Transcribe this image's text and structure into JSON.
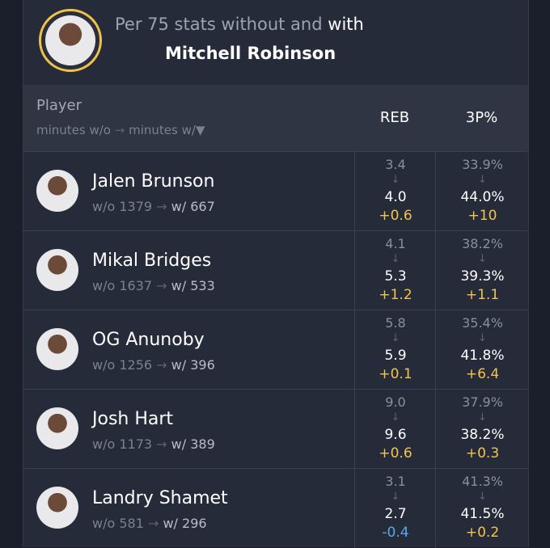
{
  "header": {
    "title": "Per 75 stats without and",
    "title_emphasis": "with",
    "subject": "Mitchell Robinson"
  },
  "table": {
    "columns": {
      "player": "Player",
      "minutes_without": "minutes w/o",
      "minutes_with": "minutes w/",
      "stats": [
        "REB",
        "3P%"
      ]
    },
    "rows": [
      {
        "name": "Jalen Brunson",
        "minutes_without": "w/o 1379",
        "minutes_with": "w/ 667",
        "stats": [
          {
            "without": "3.4",
            "with": "4.0",
            "delta": "+0.6"
          },
          {
            "without": "33.9%",
            "with": "44.0%",
            "delta": "+10"
          }
        ]
      },
      {
        "name": "Mikal Bridges",
        "minutes_without": "w/o 1637",
        "minutes_with": "w/ 533",
        "stats": [
          {
            "without": "4.1",
            "with": "5.3",
            "delta": "+1.2"
          },
          {
            "without": "38.2%",
            "with": "39.3%",
            "delta": "+1.1"
          }
        ]
      },
      {
        "name": "OG Anunoby",
        "minutes_without": "w/o 1256",
        "minutes_with": "w/ 396",
        "stats": [
          {
            "without": "5.8",
            "with": "5.9",
            "delta": "+0.1"
          },
          {
            "without": "35.4%",
            "with": "41.8%",
            "delta": "+6.4"
          }
        ]
      },
      {
        "name": "Josh Hart",
        "minutes_without": "w/o 1173",
        "minutes_with": "w/ 389",
        "stats": [
          {
            "without": "9.0",
            "with": "9.6",
            "delta": "+0.6"
          },
          {
            "without": "37.9%",
            "with": "38.2%",
            "delta": "+0.3"
          }
        ]
      },
      {
        "name": "Landry Shamet",
        "minutes_without": "w/o 581",
        "minutes_with": "w/ 296",
        "stats": [
          {
            "without": "3.1",
            "with": "2.7",
            "delta": "-0.4"
          },
          {
            "without": "41.3%",
            "with": "41.5%",
            "delta": "+0.2"
          }
        ]
      }
    ]
  }
}
